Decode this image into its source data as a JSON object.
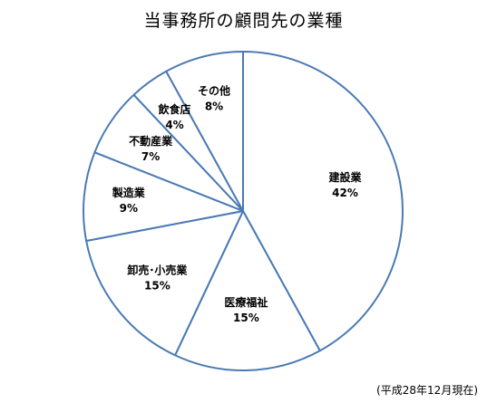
{
  "chart_data": {
    "type": "pie",
    "title": "当事務所の顧問先の業種",
    "slices": [
      {
        "label": "建設業",
        "value": 42,
        "value_label": "42%"
      },
      {
        "label": "医療福祉",
        "value": 15,
        "value_label": "15%"
      },
      {
        "label": "卸売･小売業",
        "value": 15,
        "value_label": "15%"
      },
      {
        "label": "製造業",
        "value": 9,
        "value_label": "9%"
      },
      {
        "label": "不動産業",
        "value": 7,
        "value_label": "7%"
      },
      {
        "label": "飲食店",
        "value": 4,
        "value_label": "4%"
      },
      {
        "label": "その他",
        "value": 8,
        "value_label": "8%"
      }
    ],
    "start": "top",
    "direction": "clockwise",
    "legend": "none",
    "colors": {
      "fill": "#ffffff",
      "stroke": "#4a7ab5"
    }
  },
  "footnote": "(平成28年12月現在)"
}
